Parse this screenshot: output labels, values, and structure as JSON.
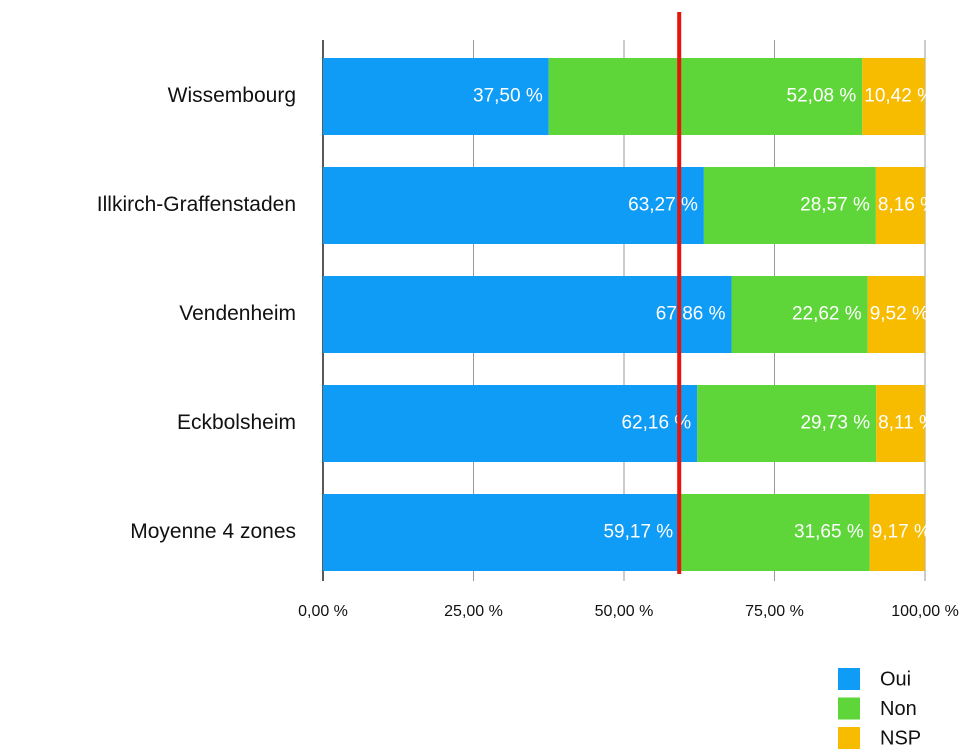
{
  "chart_data": {
    "type": "stacked_barh",
    "categories": [
      "Wissembourg",
      "Illkirch-Graffenstaden",
      "Vendenheim",
      "Eckbolsheim",
      "Moyenne 4 zones"
    ],
    "series": [
      {
        "name": "Oui",
        "color": "#0e9cf6",
        "values": [
          37.5,
          63.27,
          67.86,
          62.16,
          59.17
        ],
        "value_labels": [
          "37,50 %",
          "63,27 %",
          "67,86 %",
          "62,16 %",
          "59,17 %"
        ]
      },
      {
        "name": "Non",
        "color": "#5ed63a",
        "values": [
          52.08,
          28.57,
          22.62,
          29.73,
          31.65
        ],
        "value_labels": [
          "52,08 %",
          "28,57 %",
          "22,62 %",
          "29,73 %",
          "31,65 %"
        ]
      },
      {
        "name": "NSP",
        "color": "#f7bb00",
        "values": [
          10.42,
          8.16,
          9.52,
          8.11,
          9.17
        ],
        "value_labels": [
          "10,42 %",
          "8,16 %",
          "9,52 %",
          "8,11 %",
          "9,17 %"
        ]
      }
    ],
    "xlim": [
      0,
      100
    ],
    "xticks": [
      {
        "value": 0,
        "label": "0,00 %"
      },
      {
        "value": 25,
        "label": "25,00 %"
      },
      {
        "value": 50,
        "label": "50,00 %"
      },
      {
        "value": 75,
        "label": "75,00 %"
      },
      {
        "value": 100,
        "label": "100,00 %"
      }
    ],
    "grid": true,
    "legend": "bottom-right",
    "reference_line": {
      "value": 59.17,
      "color": "#e8140c"
    }
  }
}
